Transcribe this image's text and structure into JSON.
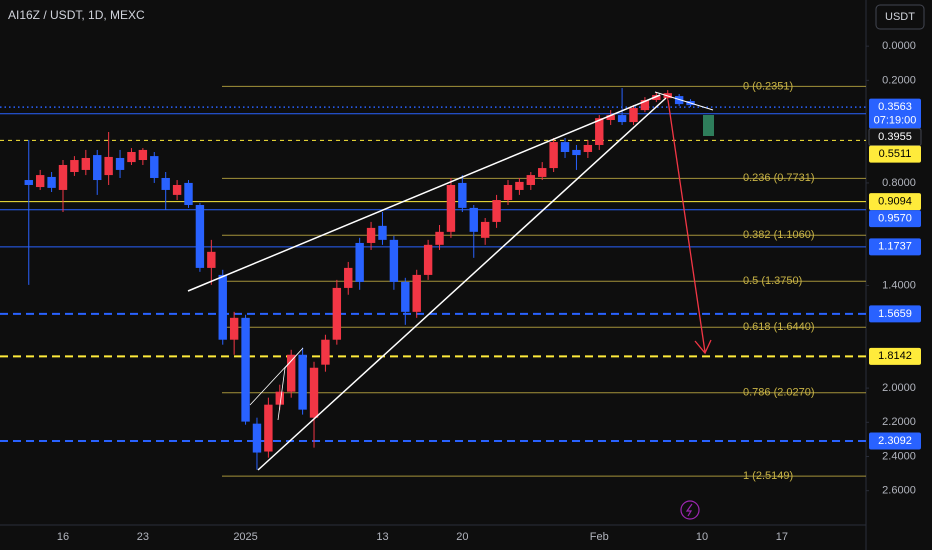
{
  "chart_data": {
    "type": "candlestick",
    "title": "AI16Z / USDT, 1D, MEXC",
    "currency_button": "USDT",
    "countdown": "07:19:00",
    "inverted": true,
    "grid": false,
    "up_color": "#2962ff",
    "down_color": "#f23645",
    "categories": [
      null,
      null,
      null,
      "16",
      null,
      null,
      null,
      null,
      null,
      null,
      "23",
      null,
      null,
      null,
      null,
      null,
      null,
      null,
      null,
      "2025",
      null,
      null,
      null,
      null,
      null,
      null,
      null,
      null,
      null,
      null,
      null,
      "13",
      null,
      null,
      null,
      null,
      null,
      null,
      "20",
      null,
      null,
      null,
      null,
      null,
      null,
      null,
      null,
      null,
      null,
      null,
      "Feb",
      null,
      null,
      null,
      null,
      null,
      null,
      null,
      null,
      "10",
      null,
      null,
      null,
      null,
      null,
      null,
      "17",
      null,
      null,
      null
    ],
    "open": [
      0.783,
      0.824,
      0.765,
      0.841,
      0.736,
      0.724,
      0.637,
      0.754,
      0.654,
      0.678,
      0.666,
      0.643,
      0.771,
      0.87,
      0.8,
      0.929,
      1.297,
      1.338,
      1.717,
      1.589,
      2.208,
      2.371,
      2.097,
      2.021,
      1.805,
      2.173,
      1.863,
      1.717,
      1.414,
      1.151,
      1.151,
      1.051,
      1.133,
      1.379,
      1.554,
      1.338,
      1.162,
      1.086,
      0.8,
      0.946,
      1.121,
      1.028,
      0.9,
      0.841,
      0.812,
      0.765,
      0.713,
      0.561,
      0.607,
      0.619,
      0.578,
      0.432,
      0.403,
      0.444,
      0.374,
      0.315,
      0.304,
      0.292,
      0.321,
      null,
      null,
      null,
      null,
      null,
      null,
      null,
      null,
      null,
      null,
      null
    ],
    "high": [
      1.396,
      0.841,
      0.853,
      0.97,
      0.759,
      0.754,
      0.87,
      0.812,
      0.771,
      0.695,
      0.695,
      0.8,
      0.958,
      0.9,
      0.946,
      1.32,
      1.396,
      1.746,
      1.805,
      2.214,
      2.477,
      2.407,
      2.126,
      2.056,
      2.155,
      2.348,
      1.904,
      1.746,
      1.454,
      1.425,
      1.192,
      1.162,
      1.425,
      1.63,
      1.589,
      1.367,
      1.192,
      1.121,
      0.97,
      1.238,
      1.162,
      1.063,
      0.929,
      0.87,
      0.841,
      0.783,
      0.736,
      0.654,
      0.724,
      0.654,
      0.607,
      0.461,
      0.461,
      0.461,
      0.386,
      0.327,
      0.315,
      0.35,
      0.356,
      null,
      null,
      null,
      null,
      null,
      null,
      null,
      null,
      null,
      null,
      null
    ],
    "low": [
      0.549,
      0.724,
      0.736,
      0.666,
      0.643,
      0.607,
      0.607,
      0.502,
      0.607,
      0.596,
      0.596,
      0.619,
      0.736,
      0.783,
      0.783,
      0.917,
      1.133,
      1.308,
      1.554,
      1.571,
      2.173,
      2.056,
      1.98,
      1.776,
      1.764,
      1.846,
      1.688,
      1.367,
      1.262,
      1.121,
      1.028,
      0.97,
      1.11,
      1.355,
      1.308,
      1.133,
      1.046,
      0.771,
      0.754,
      0.929,
      1.005,
      0.87,
      0.783,
      0.771,
      0.736,
      0.678,
      0.537,
      0.537,
      0.578,
      0.549,
      0.403,
      0.374,
      0.245,
      0.345,
      0.298,
      0.269,
      0.257,
      0.28,
      0.31,
      null,
      null,
      null,
      null,
      null,
      null,
      null,
      null,
      null,
      null,
      null
    ],
    "close": [
      0.812,
      0.754,
      0.829,
      0.695,
      0.666,
      0.654,
      0.783,
      0.648,
      0.724,
      0.619,
      0.607,
      0.771,
      0.841,
      0.812,
      0.929,
      1.297,
      1.203,
      1.717,
      1.589,
      2.196,
      2.377,
      2.097,
      2.021,
      1.805,
      2.126,
      1.881,
      1.717,
      1.414,
      1.297,
      1.379,
      1.063,
      1.133,
      1.379,
      1.554,
      1.338,
      1.162,
      1.086,
      0.812,
      0.946,
      1.086,
      1.028,
      0.9,
      0.812,
      0.794,
      0.754,
      0.713,
      0.561,
      0.619,
      0.637,
      0.578,
      0.421,
      0.403,
      0.444,
      0.362,
      0.315,
      0.286,
      0.275,
      0.339,
      0.345,
      null,
      null,
      null,
      null,
      null,
      null,
      null,
      null,
      null,
      null,
      null
    ],
    "ylim": [
      -0.27,
      2.83
    ],
    "yticks": [
      {
        "value": 0,
        "label": "0.0000"
      },
      {
        "value": 0.2,
        "label": "0.2000"
      },
      {
        "value": 0.8,
        "label": "0.8000"
      },
      {
        "value": 1.4,
        "label": "1.4000"
      },
      {
        "value": 2.0,
        "label": "2.0000"
      },
      {
        "value": 2.2,
        "label": "2.2000"
      },
      {
        "value": 2.4,
        "label": "2.4000"
      },
      {
        "value": 2.6,
        "label": "2.6000"
      }
    ],
    "price_lines": [
      {
        "value": 0.3563,
        "label": "0.3563",
        "color": "#2962ff",
        "text_color": "#ffffff",
        "style": "dotted"
      },
      {
        "value": 0.3955,
        "label": "0.3955",
        "color": "#2962ff",
        "text_color": "#ffffff",
        "box_color": "#131313",
        "style": "solid"
      },
      {
        "value": 0.5511,
        "label": "0.5511",
        "color": "#ffeb3b",
        "text_color": "#000000",
        "style": "dashed-thin"
      },
      {
        "value": 0.9094,
        "label": "0.9094",
        "color": "#ffeb3b",
        "text_color": "#000000",
        "style": "solid"
      },
      {
        "value": 0.957,
        "label": "0.9570",
        "color": "#2962ff",
        "text_color": "#ffffff",
        "style": "solid"
      },
      {
        "value": 1.1737,
        "label": "1.1737",
        "color": "#2962ff",
        "text_color": "#ffffff",
        "style": "solid"
      },
      {
        "value": 1.5659,
        "label": "1.5659",
        "color": "#2962ff",
        "text_color": "#ffffff",
        "style": "dashed"
      },
      {
        "value": 1.8142,
        "label": "1.8142",
        "color": "#ffeb3b",
        "text_color": "#000000",
        "style": "dashed"
      },
      {
        "value": 2.3092,
        "label": "2.3092",
        "color": "#2962ff",
        "text_color": "#ffffff",
        "style": "dashed"
      }
    ],
    "fib_color": "#c9b446",
    "fib_levels": [
      {
        "value": 0.2351,
        "label": "0 (0.2351)"
      },
      {
        "value": 0.7731,
        "label": "0.236 (0.7731)"
      },
      {
        "value": 1.106,
        "label": "0.382 (1.1060)"
      },
      {
        "value": 1.375,
        "label": "0.5 (1.3750)"
      },
      {
        "value": 1.644,
        "label": "0.618 (1.6440)"
      },
      {
        "value": 2.027,
        "label": "0.786 (2.0270)"
      },
      {
        "value": 2.5149,
        "label": "1 (2.5149)"
      }
    ]
  }
}
